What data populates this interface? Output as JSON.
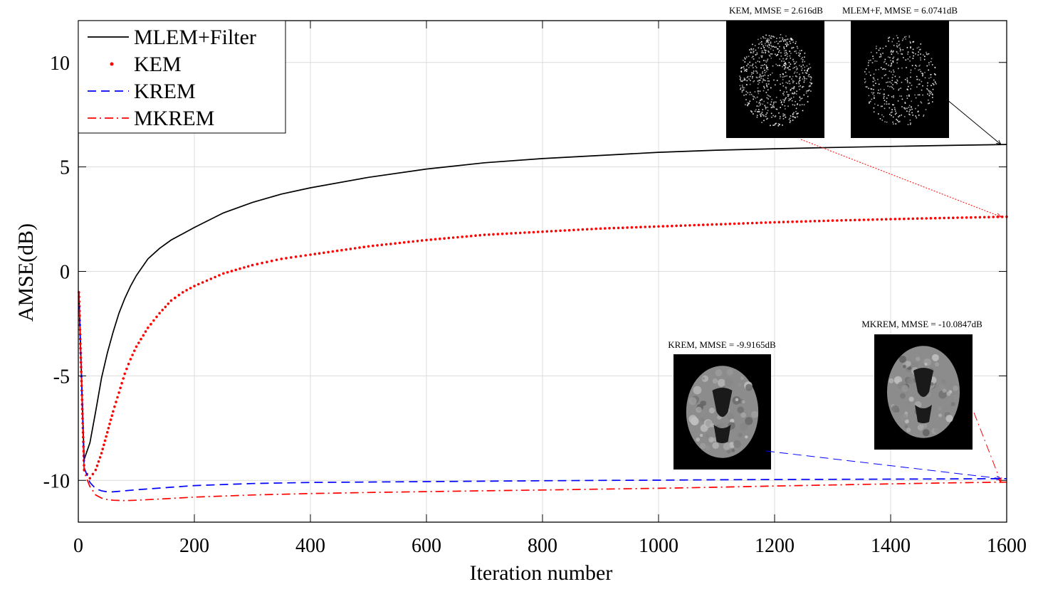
{
  "chart_data": {
    "type": "line",
    "title": "",
    "xlabel": "Iteration number",
    "ylabel": "AMSE(dB)",
    "xlim": [
      0,
      1600
    ],
    "ylim": [
      -12,
      12
    ],
    "xticks": [
      0,
      200,
      400,
      600,
      800,
      1000,
      1200,
      1400,
      1600
    ],
    "yticks": [
      -10,
      -5,
      0,
      5,
      10
    ],
    "grid": true,
    "legend_position": "top-left",
    "series": [
      {
        "name": "MLEM+Filter",
        "color": "#000000",
        "style": "solid",
        "x": [
          1,
          10,
          20,
          30,
          40,
          50,
          60,
          70,
          80,
          90,
          100,
          120,
          140,
          160,
          180,
          200,
          250,
          300,
          350,
          400,
          500,
          600,
          700,
          800,
          900,
          1000,
          1100,
          1200,
          1300,
          1400,
          1500,
          1600
        ],
        "y": [
          -1.0,
          -9.0,
          -8.2,
          -6.7,
          -5.1,
          -3.9,
          -2.9,
          -2.0,
          -1.3,
          -0.7,
          -0.2,
          0.6,
          1.1,
          1.5,
          1.8,
          2.1,
          2.8,
          3.3,
          3.7,
          4.0,
          4.5,
          4.9,
          5.2,
          5.4,
          5.55,
          5.7,
          5.8,
          5.87,
          5.93,
          5.98,
          6.03,
          6.0741
        ]
      },
      {
        "name": "KEM",
        "color": "#ff0000",
        "style": "dotted",
        "x": [
          1,
          10,
          20,
          30,
          40,
          50,
          60,
          70,
          80,
          90,
          100,
          120,
          140,
          160,
          180,
          200,
          250,
          300,
          350,
          400,
          500,
          600,
          700,
          800,
          900,
          1000,
          1100,
          1200,
          1300,
          1400,
          1500,
          1600
        ],
        "y": [
          -1.0,
          -9.5,
          -9.9,
          -9.5,
          -8.7,
          -7.7,
          -6.7,
          -5.8,
          -4.9,
          -4.2,
          -3.6,
          -2.7,
          -2.0,
          -1.4,
          -1.0,
          -0.7,
          -0.1,
          0.3,
          0.6,
          0.8,
          1.2,
          1.5,
          1.75,
          1.9,
          2.05,
          2.15,
          2.25,
          2.35,
          2.43,
          2.5,
          2.56,
          2.616
        ]
      },
      {
        "name": "KREM",
        "color": "#0000ff",
        "style": "dashed",
        "x": [
          1,
          10,
          20,
          30,
          40,
          50,
          60,
          80,
          100,
          150,
          200,
          300,
          400,
          500,
          600,
          700,
          800,
          900,
          1000,
          1100,
          1200,
          1300,
          1400,
          1500,
          1600
        ],
        "y": [
          -1.0,
          -9.4,
          -10.1,
          -10.4,
          -10.5,
          -10.55,
          -10.55,
          -10.5,
          -10.45,
          -10.35,
          -10.25,
          -10.15,
          -10.1,
          -10.08,
          -10.06,
          -10.04,
          -10.02,
          -10.0,
          -9.99,
          -9.97,
          -9.96,
          -9.95,
          -9.94,
          -9.93,
          -9.9165
        ]
      },
      {
        "name": "MKREM",
        "color": "#ff0000",
        "style": "dashdot",
        "x": [
          1,
          10,
          20,
          30,
          40,
          50,
          60,
          80,
          100,
          150,
          200,
          300,
          400,
          500,
          600,
          700,
          800,
          900,
          1000,
          1100,
          1200,
          1300,
          1400,
          1500,
          1600
        ],
        "y": [
          -1.0,
          -9.6,
          -10.3,
          -10.7,
          -10.85,
          -10.92,
          -10.95,
          -10.97,
          -10.95,
          -10.88,
          -10.8,
          -10.7,
          -10.63,
          -10.58,
          -10.54,
          -10.5,
          -10.46,
          -10.42,
          -10.38,
          -10.33,
          -10.27,
          -10.22,
          -10.17,
          -10.12,
          -10.0847
        ]
      }
    ],
    "insets": [
      {
        "name": "KEM inset",
        "title": "KEM, MMSE = 2.616dB",
        "style": "speckle",
        "target_x": 1590,
        "target_y": 2.616,
        "arrow_color": "#ff0000",
        "arrow_style": "dotted"
      },
      {
        "name": "MLEM+F inset",
        "title": "MLEM+F, MMSE = 6.0741dB",
        "style": "speckle-sparse",
        "target_x": 1590,
        "target_y": 6.0741,
        "arrow_color": "#000000",
        "arrow_style": "solid"
      },
      {
        "name": "KREM inset",
        "title": "KREM, MMSE = -9.9165dB",
        "style": "smooth",
        "target_x": 1590,
        "target_y": -9.9165,
        "arrow_color": "#0000ff",
        "arrow_style": "dashed"
      },
      {
        "name": "MKREM inset",
        "title": "MKREM, MMSE = -10.0847dB",
        "style": "smooth",
        "target_x": 1590,
        "target_y": -10.0847,
        "arrow_color": "#ff0000",
        "arrow_style": "dashdot"
      }
    ]
  }
}
